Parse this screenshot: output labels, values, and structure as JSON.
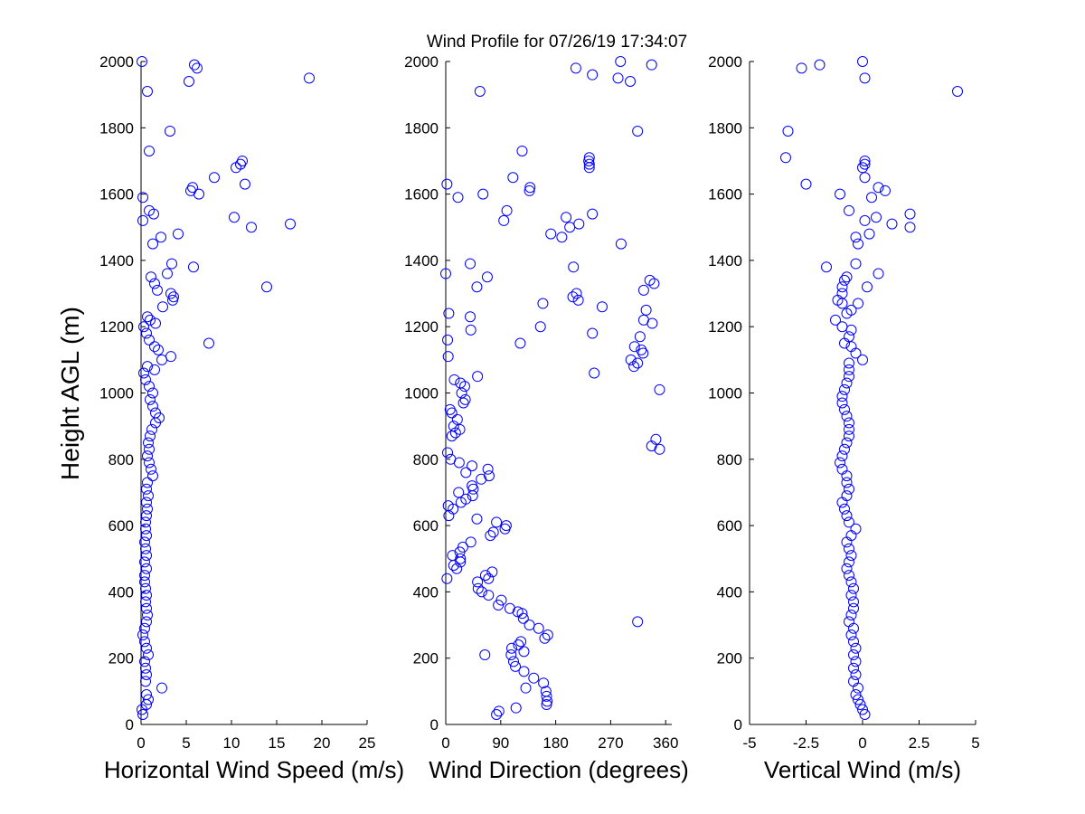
{
  "title": "Wind Profile for  07/26/19 17:34:07",
  "ylabel": "Height AGL (m)",
  "ylim": [
    0,
    2000
  ],
  "yticks": [
    0,
    200,
    400,
    600,
    800,
    1000,
    1200,
    1400,
    1600,
    1800,
    2000
  ],
  "marker_color": "#0000ff",
  "chart_data": [
    {
      "type": "scatter",
      "id": "speed",
      "xlabel": "Horizontal Wind Speed (m/s)",
      "xlim": [
        0,
        25
      ],
      "xticks": [
        0,
        5,
        10,
        15,
        20,
        25
      ],
      "xticklabels": [
        "0",
        "5",
        "10",
        "15",
        "20",
        "25"
      ],
      "points": [
        [
          0.2,
          30
        ],
        [
          0.1,
          45
        ],
        [
          0.6,
          60
        ],
        [
          0.8,
          75
        ],
        [
          0.6,
          90
        ],
        [
          2.3,
          110
        ],
        [
          0.5,
          130
        ],
        [
          0.6,
          150
        ],
        [
          0.5,
          170
        ],
        [
          0.4,
          190
        ],
        [
          0.8,
          210
        ],
        [
          0.6,
          230
        ],
        [
          0.4,
          250
        ],
        [
          0.2,
          270
        ],
        [
          0.4,
          290
        ],
        [
          0.6,
          310
        ],
        [
          0.7,
          330
        ],
        [
          0.6,
          350
        ],
        [
          0.5,
          370
        ],
        [
          0.6,
          390
        ],
        [
          0.5,
          410
        ],
        [
          0.4,
          430
        ],
        [
          0.4,
          450
        ],
        [
          0.6,
          470
        ],
        [
          0.4,
          490
        ],
        [
          0.6,
          510
        ],
        [
          0.5,
          530
        ],
        [
          0.4,
          550
        ],
        [
          0.6,
          570
        ],
        [
          0.5,
          590
        ],
        [
          0.5,
          610
        ],
        [
          0.6,
          630
        ],
        [
          0.7,
          650
        ],
        [
          0.6,
          670
        ],
        [
          0.8,
          690
        ],
        [
          0.6,
          710
        ],
        [
          0.7,
          730
        ],
        [
          1.3,
          750
        ],
        [
          1.1,
          770
        ],
        [
          0.9,
          790
        ],
        [
          0.7,
          810
        ],
        [
          0.9,
          830
        ],
        [
          0.8,
          850
        ],
        [
          1.0,
          870
        ],
        [
          1.2,
          890
        ],
        [
          1.6,
          910
        ],
        [
          2.0,
          925
        ],
        [
          1.6,
          940
        ],
        [
          1.3,
          960
        ],
        [
          1.0,
          980
        ],
        [
          1.3,
          1000
        ],
        [
          0.9,
          1020
        ],
        [
          0.5,
          1040
        ],
        [
          0.3,
          1060
        ],
        [
          0.7,
          1080
        ],
        [
          1.5,
          1070
        ],
        [
          2.3,
          1100
        ],
        [
          3.3,
          1110
        ],
        [
          1.9,
          1130
        ],
        [
          1.5,
          1140
        ],
        [
          0.9,
          1160
        ],
        [
          0.6,
          1180
        ],
        [
          0.3,
          1200
        ],
        [
          1.6,
          1210
        ],
        [
          1.0,
          1220
        ],
        [
          0.7,
          1230
        ],
        [
          2.4,
          1260
        ],
        [
          3.5,
          1280
        ],
        [
          3.6,
          1290
        ],
        [
          3.3,
          1300
        ],
        [
          1.8,
          1310
        ],
        [
          1.5,
          1330
        ],
        [
          1.1,
          1350
        ],
        [
          13.9,
          1320
        ],
        [
          2.9,
          1360
        ],
        [
          5.8,
          1380
        ],
        [
          3.4,
          1390
        ],
        [
          7.5,
          1150
        ],
        [
          1.3,
          1450
        ],
        [
          2.2,
          1470
        ],
        [
          4.1,
          1480
        ],
        [
          12.2,
          1500
        ],
        [
          16.5,
          1510
        ],
        [
          10.3,
          1530
        ],
        [
          1.4,
          1540
        ],
        [
          0.9,
          1550
        ],
        [
          0.2,
          1520
        ],
        [
          0.2,
          1590
        ],
        [
          6.4,
          1600
        ],
        [
          5.5,
          1610
        ],
        [
          5.7,
          1620
        ],
        [
          11.5,
          1630
        ],
        [
          8.1,
          1650
        ],
        [
          10.5,
          1680
        ],
        [
          11.0,
          1690
        ],
        [
          11.2,
          1700
        ],
        [
          0.9,
          1730
        ],
        [
          3.2,
          1790
        ],
        [
          18.6,
          1950
        ],
        [
          5.3,
          1940
        ],
        [
          0.7,
          1910
        ],
        [
          6.2,
          1980
        ],
        [
          5.9,
          1990
        ],
        [
          0.1,
          2000
        ]
      ]
    },
    {
      "type": "scatter",
      "id": "direction",
      "xlabel": "Wind Direction (degrees)",
      "xlim": [
        0,
        370
      ],
      "xticks": [
        0,
        90,
        180,
        270,
        360
      ],
      "xticklabels": [
        "0",
        "90",
        "180",
        "270",
        "360"
      ],
      "points": [
        [
          83,
          30
        ],
        [
          87,
          40
        ],
        [
          115,
          50
        ],
        [
          165,
          60
        ],
        [
          166,
          70
        ],
        [
          165,
          85
        ],
        [
          164,
          100
        ],
        [
          131,
          110
        ],
        [
          160,
          125
        ],
        [
          144,
          140
        ],
        [
          128,
          160
        ],
        [
          114,
          175
        ],
        [
          111,
          190
        ],
        [
          107,
          210
        ],
        [
          64,
          210
        ],
        [
          108,
          230
        ],
        [
          119,
          240
        ],
        [
          128,
          220
        ],
        [
          123,
          250
        ],
        [
          162,
          260
        ],
        [
          167,
          270
        ],
        [
          152,
          290
        ],
        [
          137,
          300
        ],
        [
          127,
          320
        ],
        [
          125,
          335
        ],
        [
          118,
          340
        ],
        [
          105,
          350
        ],
        [
          86,
          360
        ],
        [
          91,
          375
        ],
        [
          70,
          390
        ],
        [
          59,
          400
        ],
        [
          53,
          410
        ],
        [
          52,
          430
        ],
        [
          70,
          440
        ],
        [
          76,
          460
        ],
        [
          65,
          450
        ],
        [
          2,
          440
        ],
        [
          24,
          490
        ],
        [
          18,
          470
        ],
        [
          13,
          480
        ],
        [
          24,
          500
        ],
        [
          11,
          510
        ],
        [
          23,
          520
        ],
        [
          28,
          535
        ],
        [
          41,
          550
        ],
        [
          73,
          570
        ],
        [
          78,
          580
        ],
        [
          99,
          600
        ],
        [
          97,
          590
        ],
        [
          83,
          610
        ],
        [
          51,
          620
        ],
        [
          5,
          630
        ],
        [
          12,
          650
        ],
        [
          4,
          660
        ],
        [
          25,
          670
        ],
        [
          33,
          680
        ],
        [
          44,
          690
        ],
        [
          21,
          700
        ],
        [
          45,
          710
        ],
        [
          43,
          720
        ],
        [
          58,
          740
        ],
        [
          71,
          750
        ],
        [
          33,
          760
        ],
        [
          69,
          770
        ],
        [
          43,
          780
        ],
        [
          22,
          790
        ],
        [
          8,
          800
        ],
        [
          3,
          820
        ],
        [
          23,
          890
        ],
        [
          16,
          880
        ],
        [
          10,
          870
        ],
        [
          13,
          900
        ],
        [
          19,
          920
        ],
        [
          10,
          940
        ],
        [
          7,
          950
        ],
        [
          29,
          970
        ],
        [
          32,
          980
        ],
        [
          26,
          1000
        ],
        [
          31,
          1020
        ],
        [
          14,
          1040
        ],
        [
          24,
          1030
        ],
        [
          52,
          1050
        ],
        [
          4,
          1110
        ],
        [
          3,
          1160
        ],
        [
          5,
          1240
        ],
        [
          0,
          1360
        ],
        [
          41,
          1190
        ],
        [
          40,
          1230
        ],
        [
          51,
          1320
        ],
        [
          68,
          1350
        ],
        [
          40,
          1390
        ],
        [
          243,
          1060
        ],
        [
          308,
          1080
        ],
        [
          314,
          1090
        ],
        [
          303,
          1100
        ],
        [
          309,
          1140
        ],
        [
          318,
          1170
        ],
        [
          320,
          1130
        ],
        [
          323,
          1120
        ],
        [
          324,
          1220
        ],
        [
          338,
          1210
        ],
        [
          328,
          1250
        ],
        [
          324,
          1310
        ],
        [
          341,
          1330
        ],
        [
          334,
          1340
        ],
        [
          314,
          310
        ],
        [
          344,
          860
        ],
        [
          350,
          830
        ],
        [
          337,
          840
        ],
        [
          350,
          1010
        ],
        [
          155,
          1200
        ],
        [
          122,
          1150
        ],
        [
          240,
          1180
        ],
        [
          256,
          1260
        ],
        [
          208,
          1290
        ],
        [
          214,
          1300
        ],
        [
          217,
          1280
        ],
        [
          159,
          1270
        ],
        [
          209,
          1380
        ],
        [
          172,
          1480
        ],
        [
          190,
          1470
        ],
        [
          203,
          1500
        ],
        [
          197,
          1530
        ],
        [
          218,
          1510
        ],
        [
          240,
          1540
        ],
        [
          287,
          1450
        ],
        [
          95,
          1520
        ],
        [
          100,
          1550
        ],
        [
          61,
          1600
        ],
        [
          137,
          1610
        ],
        [
          138,
          1620
        ],
        [
          110,
          1650
        ],
        [
          125,
          1730
        ],
        [
          2,
          1630
        ],
        [
          20,
          1590
        ],
        [
          235,
          1680
        ],
        [
          235,
          1690
        ],
        [
          234,
          1700
        ],
        [
          235,
          1710
        ],
        [
          314,
          1790
        ],
        [
          56,
          1910
        ],
        [
          213,
          1980
        ],
        [
          240,
          1960
        ],
        [
          282,
          1950
        ],
        [
          302,
          1940
        ],
        [
          286,
          2000
        ],
        [
          337,
          1990
        ]
      ]
    },
    {
      "type": "scatter",
      "id": "vertical",
      "xlabel": "Vertical Wind (m/s)",
      "xlim": [
        -5,
        5
      ],
      "xticks": [
        -5,
        -2.5,
        0,
        2.5,
        5
      ],
      "xticklabels": [
        "-5",
        "-2.5",
        "0",
        "2.5",
        "5"
      ],
      "points": [
        [
          0.1,
          30
        ],
        [
          0.0,
          45
        ],
        [
          -0.1,
          60
        ],
        [
          -0.2,
          75
        ],
        [
          -0.3,
          90
        ],
        [
          -0.2,
          110
        ],
        [
          -0.4,
          130
        ],
        [
          -0.3,
          150
        ],
        [
          -0.4,
          170
        ],
        [
          -0.3,
          190
        ],
        [
          -0.4,
          210
        ],
        [
          -0.3,
          230
        ],
        [
          -0.4,
          250
        ],
        [
          -0.5,
          270
        ],
        [
          -0.4,
          290
        ],
        [
          -0.6,
          310
        ],
        [
          -0.5,
          330
        ],
        [
          -0.4,
          350
        ],
        [
          -0.4,
          370
        ],
        [
          -0.5,
          390
        ],
        [
          -0.4,
          410
        ],
        [
          -0.5,
          430
        ],
        [
          -0.6,
          450
        ],
        [
          -0.7,
          470
        ],
        [
          -0.6,
          490
        ],
        [
          -0.5,
          510
        ],
        [
          -0.6,
          530
        ],
        [
          -0.7,
          550
        ],
        [
          -0.5,
          570
        ],
        [
          -0.3,
          590
        ],
        [
          -0.6,
          610
        ],
        [
          -0.7,
          630
        ],
        [
          -0.8,
          650
        ],
        [
          -0.9,
          670
        ],
        [
          -0.7,
          690
        ],
        [
          -0.6,
          710
        ],
        [
          -0.7,
          730
        ],
        [
          -0.7,
          750
        ],
        [
          -0.9,
          770
        ],
        [
          -1.0,
          790
        ],
        [
          -0.9,
          810
        ],
        [
          -0.8,
          830
        ],
        [
          -0.7,
          850
        ],
        [
          -0.6,
          870
        ],
        [
          -0.6,
          890
        ],
        [
          -0.6,
          910
        ],
        [
          -0.7,
          930
        ],
        [
          -0.8,
          950
        ],
        [
          -0.9,
          970
        ],
        [
          -0.9,
          990
        ],
        [
          -0.8,
          1010
        ],
        [
          -0.7,
          1030
        ],
        [
          -0.6,
          1050
        ],
        [
          -0.6,
          1070
        ],
        [
          -0.6,
          1090
        ],
        [
          0.0,
          1100
        ],
        [
          -0.3,
          1120
        ],
        [
          -0.5,
          1140
        ],
        [
          -0.8,
          1150
        ],
        [
          -0.6,
          1170
        ],
        [
          -0.5,
          1190
        ],
        [
          -0.9,
          1200
        ],
        [
          -1.2,
          1220
        ],
        [
          -0.7,
          1240
        ],
        [
          -0.5,
          1250
        ],
        [
          -0.9,
          1270
        ],
        [
          -1.1,
          1280
        ],
        [
          -0.2,
          1270
        ],
        [
          -0.9,
          1300
        ],
        [
          -0.9,
          1320
        ],
        [
          -0.8,
          1340
        ],
        [
          -0.7,
          1350
        ],
        [
          0.2,
          1320
        ],
        [
          0.7,
          1360
        ],
        [
          -0.3,
          1390
        ],
        [
          -1.6,
          1380
        ],
        [
          -0.2,
          1450
        ],
        [
          -0.3,
          1470
        ],
        [
          0.3,
          1480
        ],
        [
          1.3,
          1510
        ],
        [
          2.1,
          1500
        ],
        [
          2.1,
          1540
        ],
        [
          0.6,
          1530
        ],
        [
          0.1,
          1520
        ],
        [
          -0.6,
          1550
        ],
        [
          -1.0,
          1600
        ],
        [
          0.4,
          1590
        ],
        [
          1.0,
          1610
        ],
        [
          0.7,
          1620
        ],
        [
          0.0,
          1680
        ],
        [
          0.1,
          1650
        ],
        [
          0.1,
          1700
        ],
        [
          0.1,
          1690
        ],
        [
          -2.5,
          1630
        ],
        [
          -3.4,
          1710
        ],
        [
          -3.3,
          1790
        ],
        [
          -2.7,
          1980
        ],
        [
          -1.9,
          1990
        ],
        [
          0.0,
          2000
        ],
        [
          0.1,
          1950
        ],
        [
          4.2,
          1910
        ]
      ]
    }
  ]
}
